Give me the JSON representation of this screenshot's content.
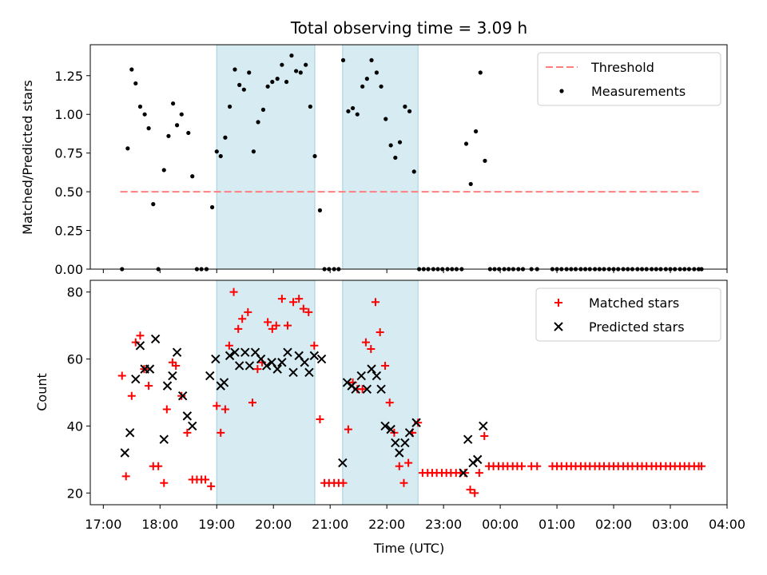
{
  "figure": {
    "title": "Total observing time = 3.09 h",
    "xlabel": "Time (UTC)",
    "x_tick_labels": [
      "17:00",
      "18:00",
      "19:00",
      "20:00",
      "21:00",
      "22:00",
      "23:00",
      "00:00",
      "01:00",
      "02:00",
      "03:00",
      "04:00"
    ]
  },
  "chart_data": [
    {
      "type": "scatter",
      "panel": "top",
      "ylabel": "Matched/Predicted stars",
      "ylim": [
        0,
        1.45
      ],
      "y_ticks": [
        "0.00",
        "0.25",
        "0.50",
        "0.75",
        "1.00",
        "1.25"
      ],
      "xlim_hours": [
        16.77,
        28.0
      ],
      "shaded_intervals_hours": [
        [
          19.0,
          20.73
        ],
        [
          21.22,
          22.55
        ]
      ],
      "legend_position": "upper right",
      "series": [
        {
          "name": "Threshold",
          "kind": "dashed-line",
          "color": "#ff7f7f",
          "x": [
            17.3,
            27.55
          ],
          "y": [
            0.5,
            0.5
          ]
        },
        {
          "name": "Measurements",
          "kind": "dot",
          "color": "#000000",
          "x": [
            17.33,
            17.43,
            17.5,
            17.57,
            17.65,
            17.73,
            17.8,
            17.88,
            17.97,
            18.07,
            18.15,
            18.23,
            18.3,
            18.38,
            18.5,
            18.57,
            18.65,
            18.73,
            18.82,
            18.92,
            19.0,
            19.07,
            19.15,
            19.23,
            19.32,
            19.4,
            19.48,
            19.57,
            19.65,
            19.73,
            19.82,
            19.9,
            19.98,
            20.07,
            20.15,
            20.23,
            20.32,
            20.4,
            20.48,
            20.57,
            20.65,
            20.73,
            20.82,
            20.9,
            20.98,
            21.07,
            21.15,
            21.23,
            21.32,
            21.4,
            21.48,
            21.57,
            21.65,
            21.73,
            21.82,
            21.9,
            21.98,
            22.07,
            22.15,
            22.23,
            22.32,
            22.4,
            22.48,
            22.57,
            22.65,
            22.73,
            22.82,
            22.9,
            22.98,
            23.07,
            23.15,
            23.23,
            23.32,
            23.4,
            23.48,
            23.57,
            23.65,
            23.73,
            23.82,
            23.9,
            23.98,
            24.07,
            24.15,
            24.23,
            24.32,
            24.4,
            24.55,
            24.65,
            24.92,
            25.0,
            25.08,
            25.17,
            25.25,
            25.33,
            25.42,
            25.5,
            25.58,
            25.67,
            25.75,
            25.83,
            25.92,
            26.0,
            26.08,
            26.17,
            26.25,
            26.33,
            26.42,
            26.5,
            26.58,
            26.67,
            26.75,
            26.83,
            26.92,
            27.0,
            27.08,
            27.17,
            27.25,
            27.33,
            27.42,
            27.5,
            27.55
          ],
          "y": [
            0.0,
            0.78,
            1.29,
            1.2,
            1.05,
            1.0,
            0.91,
            0.42,
            0.0,
            0.64,
            0.86,
            1.07,
            0.93,
            1.0,
            0.88,
            0.6,
            0.0,
            0.0,
            0.0,
            0.4,
            0.76,
            0.73,
            0.85,
            1.05,
            1.29,
            1.19,
            1.16,
            1.27,
            0.76,
            0.95,
            1.03,
            1.18,
            1.21,
            1.23,
            1.32,
            1.21,
            1.38,
            1.28,
            1.27,
            1.32,
            1.05,
            0.73,
            0.38,
            0.0,
            0.0,
            0.0,
            0.0,
            1.35,
            1.02,
            1.04,
            1.0,
            1.18,
            1.23,
            1.35,
            1.27,
            1.18,
            0.97,
            0.8,
            0.72,
            0.82,
            1.05,
            1.02,
            0.63,
            0.0,
            0.0,
            0.0,
            0.0,
            0.0,
            0.0,
            0.0,
            0.0,
            0.0,
            0.0,
            0.81,
            0.55,
            0.89,
            1.27,
            0.7,
            0.0,
            0.0,
            0.0,
            0.0,
            0.0,
            0.0,
            0.0,
            0.0,
            0.0,
            0.0,
            0.0,
            0.0,
            0.0,
            0.0,
            0.0,
            0.0,
            0.0,
            0.0,
            0.0,
            0.0,
            0.0,
            0.0,
            0.0,
            0.0,
            0.0,
            0.0,
            0.0,
            0.0,
            0.0,
            0.0,
            0.0,
            0.0,
            0.0,
            0.0,
            0.0,
            0.0,
            0.0,
            0.0,
            0.0,
            0.0,
            0.0,
            0.0,
            0.0
          ]
        }
      ]
    },
    {
      "type": "scatter",
      "panel": "bottom",
      "ylabel": "Count",
      "ylim": [
        16.5,
        83.5
      ],
      "y_ticks": [
        "20",
        "40",
        "60",
        "80"
      ],
      "xlim_hours": [
        16.77,
        28.0
      ],
      "shaded_intervals_hours": [
        [
          19.0,
          20.73
        ],
        [
          21.22,
          22.55
        ]
      ],
      "legend_position": "upper right",
      "series": [
        {
          "name": "Matched stars",
          "kind": "plus",
          "color": "#ff0000",
          "x": [
            17.33,
            17.4,
            17.5,
            17.57,
            17.65,
            17.72,
            17.8,
            17.88,
            17.97,
            18.07,
            18.12,
            18.22,
            18.28,
            18.38,
            18.48,
            18.57,
            18.65,
            18.73,
            18.8,
            18.9,
            19.0,
            19.07,
            19.15,
            19.22,
            19.3,
            19.38,
            19.45,
            19.55,
            19.63,
            19.72,
            19.8,
            19.9,
            19.98,
            20.05,
            20.15,
            20.25,
            20.35,
            20.45,
            20.53,
            20.62,
            20.72,
            20.82,
            20.9,
            20.98,
            21.07,
            21.15,
            21.23,
            21.32,
            21.4,
            21.48,
            21.57,
            21.63,
            21.72,
            21.8,
            21.88,
            21.97,
            22.05,
            22.13,
            22.22,
            22.3,
            22.38,
            22.45,
            22.55,
            22.63,
            22.72,
            22.8,
            22.88,
            22.97,
            23.05,
            23.13,
            23.22,
            23.3,
            23.38,
            23.47,
            23.55,
            23.63,
            23.72,
            23.8,
            23.88,
            23.97,
            24.05,
            24.13,
            24.22,
            24.3,
            24.38,
            24.55,
            24.65,
            24.92,
            25.0,
            25.08,
            25.17,
            25.25,
            25.33,
            25.42,
            25.5,
            25.58,
            25.67,
            25.75,
            25.83,
            25.92,
            26.0,
            26.08,
            26.17,
            26.25,
            26.33,
            26.42,
            26.5,
            26.58,
            26.67,
            26.75,
            26.83,
            26.92,
            27.0,
            27.08,
            27.17,
            27.25,
            27.33,
            27.42,
            27.5,
            27.55
          ],
          "y": [
            55,
            25,
            49,
            65,
            67,
            57,
            52,
            28,
            28,
            23,
            45,
            59,
            58,
            49,
            38,
            24,
            24,
            24,
            24,
            22,
            46,
            38,
            45,
            64,
            80,
            69,
            72,
            74,
            47,
            57,
            59,
            71,
            69,
            70,
            78,
            70,
            77,
            78,
            75,
            74,
            64,
            42,
            23,
            23,
            23,
            23,
            23,
            39,
            53,
            51,
            51,
            65,
            63,
            77,
            68,
            58,
            47,
            38,
            28,
            23,
            29,
            38,
            41,
            26,
            26,
            26,
            26,
            26,
            26,
            26,
            26,
            26,
            26,
            21,
            20,
            26,
            37,
            28,
            28,
            28,
            28,
            28,
            28,
            28,
            28,
            28,
            28,
            28,
            28,
            28,
            28,
            28,
            28,
            28,
            28,
            28,
            28,
            28,
            28,
            28,
            28,
            28,
            28,
            28,
            28,
            28,
            28,
            28,
            28,
            28,
            28,
            28,
            28,
            28,
            28,
            28,
            28,
            28,
            28,
            28
          ]
        },
        {
          "name": "Predicted stars",
          "kind": "x",
          "color": "#000000",
          "x": [
            17.38,
            17.47,
            17.57,
            17.65,
            17.73,
            17.82,
            17.92,
            18.07,
            18.13,
            18.22,
            18.3,
            18.4,
            18.48,
            18.57,
            18.88,
            18.98,
            19.07,
            19.13,
            19.23,
            19.32,
            19.4,
            19.5,
            19.58,
            19.68,
            19.78,
            19.88,
            19.97,
            20.07,
            20.15,
            20.25,
            20.35,
            20.45,
            20.55,
            20.63,
            20.72,
            20.85,
            21.22,
            21.3,
            21.38,
            21.45,
            21.55,
            21.65,
            21.73,
            21.82,
            21.9,
            21.97,
            22.07,
            22.15,
            22.22,
            22.32,
            22.4,
            22.52,
            23.35,
            23.43,
            23.52,
            23.6,
            23.7
          ],
          "y": [
            32,
            38,
            54,
            64,
            57,
            57,
            66,
            36,
            52,
            55,
            62,
            49,
            43,
            40,
            55,
            60,
            52,
            53,
            61,
            62,
            58,
            62,
            58,
            62,
            60,
            58,
            59,
            57,
            59,
            62,
            56,
            61,
            59,
            56,
            61,
            60,
            29,
            53,
            52,
            51,
            55,
            51,
            57,
            55,
            51,
            40,
            39,
            35,
            32,
            35,
            38,
            41,
            26,
            36,
            29,
            30,
            40
          ]
        }
      ]
    }
  ]
}
